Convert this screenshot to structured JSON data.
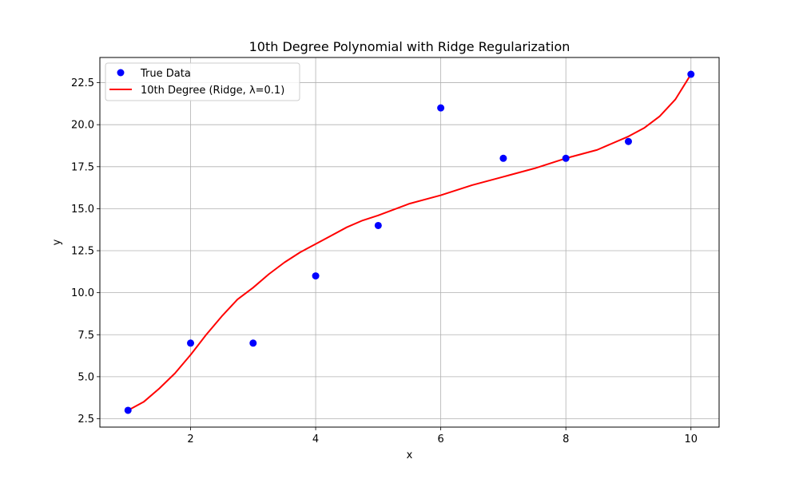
{
  "chart_data": {
    "type": "scatter",
    "title": "10th Degree Polynomial with Ridge Regularization",
    "xlabel": "x",
    "ylabel": "y",
    "xlim": [
      0.55,
      10.45
    ],
    "ylim": [
      2.0,
      24.0
    ],
    "x_ticks": [
      2,
      4,
      6,
      8,
      10
    ],
    "x_tick_labels": [
      "2",
      "4",
      "6",
      "8",
      "10"
    ],
    "y_ticks": [
      2.5,
      5.0,
      7.5,
      10.0,
      12.5,
      15.0,
      17.5,
      20.0,
      22.5
    ],
    "y_tick_labels": [
      "2.5",
      "5.0",
      "7.5",
      "10.0",
      "12.5",
      "15.0",
      "17.5",
      "20.0",
      "22.5"
    ],
    "grid": true,
    "legend_position": "top-left",
    "series": [
      {
        "name": "True Data",
        "kind": "scatter",
        "color": "#0000ff",
        "x": [
          1,
          2,
          3,
          4,
          5,
          6,
          7,
          8,
          9,
          10
        ],
        "y": [
          3,
          7,
          7,
          11,
          14,
          21,
          18,
          18,
          19,
          23
        ]
      },
      {
        "name": "10th Degree (Ridge, λ=0.1)",
        "kind": "line",
        "color": "#ff0000",
        "x": [
          1.0,
          1.25,
          1.5,
          1.75,
          2.0,
          2.25,
          2.5,
          2.75,
          3.0,
          3.25,
          3.5,
          3.75,
          4.0,
          4.25,
          4.5,
          4.75,
          5.0,
          5.5,
          6.0,
          6.5,
          7.0,
          7.5,
          8.0,
          8.5,
          9.0,
          9.25,
          9.5,
          9.75,
          10.0
        ],
        "y": [
          3.0,
          3.5,
          4.3,
          5.2,
          6.3,
          7.5,
          8.6,
          9.6,
          10.3,
          11.1,
          11.8,
          12.4,
          12.9,
          13.4,
          13.9,
          14.3,
          14.6,
          15.3,
          15.8,
          16.4,
          16.9,
          17.4,
          18.0,
          18.5,
          19.3,
          19.8,
          20.5,
          21.5,
          23.0
        ]
      }
    ]
  }
}
